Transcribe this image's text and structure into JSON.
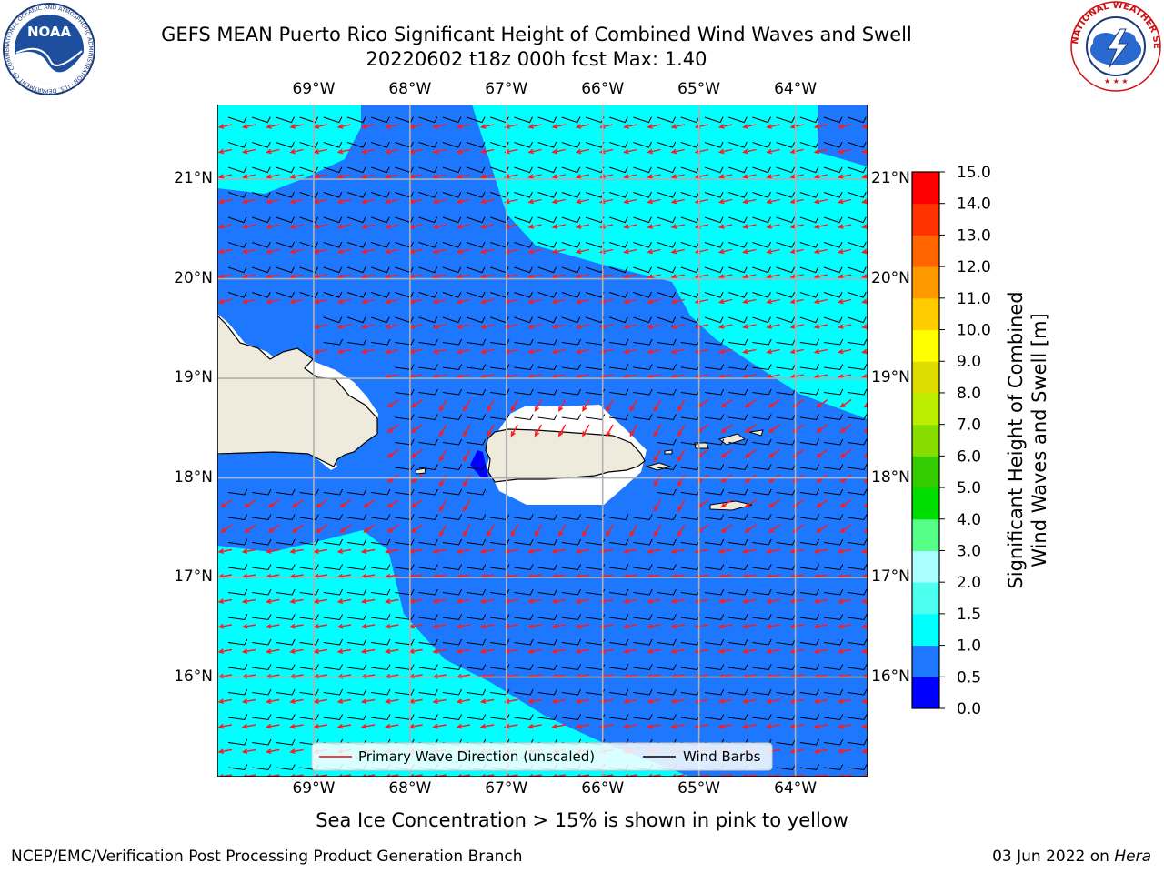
{
  "header": {
    "title_line1": "GEFS MEAN Puerto Rico Significant Height of Combined Wind Waves and Swell",
    "title_line2": "20220602 t18z 000h fcst   Max: 1.40"
  },
  "logos": {
    "noaa_left": "NOAA",
    "noaa_ring_text": "NATIONAL OCEANIC AND ATMOSPHERIC ADMINISTRATION · U.S. DEPARTMENT OF COMMERCE",
    "nws_ring_text": "NATIONAL WEATHER SERVICE"
  },
  "map": {
    "lon_ticks": [
      "69°W",
      "68°W",
      "67°W",
      "66°W",
      "65°W",
      "64°W"
    ],
    "lat_ticks": [
      "21°N",
      "20°N",
      "19°N",
      "18°N",
      "17°N",
      "16°N"
    ],
    "lon_values": [
      -69,
      -68,
      -67,
      -66,
      -65,
      -64
    ],
    "lat_values": [
      21,
      20,
      19,
      18,
      17,
      16
    ],
    "extent": {
      "lon_min": -70.0,
      "lon_max": -63.25,
      "lat_min": 15.0,
      "lat_max": 21.75
    },
    "colors": {
      "ocean_low": "#1e78ff",
      "ocean_mid": "#00ffff",
      "land": "#eeebdd",
      "coast": "#000000",
      "wave_arrow": "#ff1a1a",
      "barb": "#000000",
      "grid": "#b0b0b0"
    }
  },
  "legend": {
    "items": [
      {
        "label": "Primary Wave Direction (unscaled)",
        "color": "#ff0000"
      },
      {
        "label": "Wind Barbs",
        "color": "#000000"
      }
    ]
  },
  "colorbar": {
    "label_line1": "Significant Height of Combined",
    "label_line2": "Wind Waves and Swell [m]",
    "ticks": [
      "0.0",
      "0.5",
      "1.0",
      "1.5",
      "2.0",
      "3.0",
      "4.0",
      "5.0",
      "6.0",
      "7.0",
      "8.0",
      "9.0",
      "10.0",
      "11.0",
      "12.0",
      "13.0",
      "14.0",
      "15.0"
    ],
    "colors": [
      "#0000ff",
      "#1e78ff",
      "#00ffff",
      "#4cffee",
      "#aaffff",
      "#55ff88",
      "#00dd00",
      "#33cc00",
      "#88dd00",
      "#bbee00",
      "#dddd00",
      "#ffff00",
      "#ffcc00",
      "#ff9900",
      "#ff6600",
      "#ff3300",
      "#ff0000"
    ]
  },
  "subtitle": "Sea Ice Concentration > 15% is shown in pink to yellow",
  "footer": {
    "left": "NCEP/EMC/Verification Post Processing Product Generation Branch",
    "right_prefix": "03 Jun 2022 on ",
    "right_host": "Hera"
  },
  "chart_data": {
    "type": "heatmap",
    "title": "GEFS MEAN Puerto Rico Significant Height of Combined Wind Waves and Swell",
    "subtitle": "20220602 t18z 000h fcst   Max: 1.40",
    "variable_units": "m",
    "max_value": 1.4,
    "color_levels": [
      0.0,
      0.5,
      1.0,
      1.5,
      2.0,
      3.0,
      4.0,
      5.0,
      6.0,
      7.0,
      8.0,
      9.0,
      10.0,
      11.0,
      12.0,
      13.0,
      14.0,
      15.0
    ],
    "xlim": [
      -70.0,
      -63.25
    ],
    "ylim": [
      15.0,
      21.75
    ]
  }
}
